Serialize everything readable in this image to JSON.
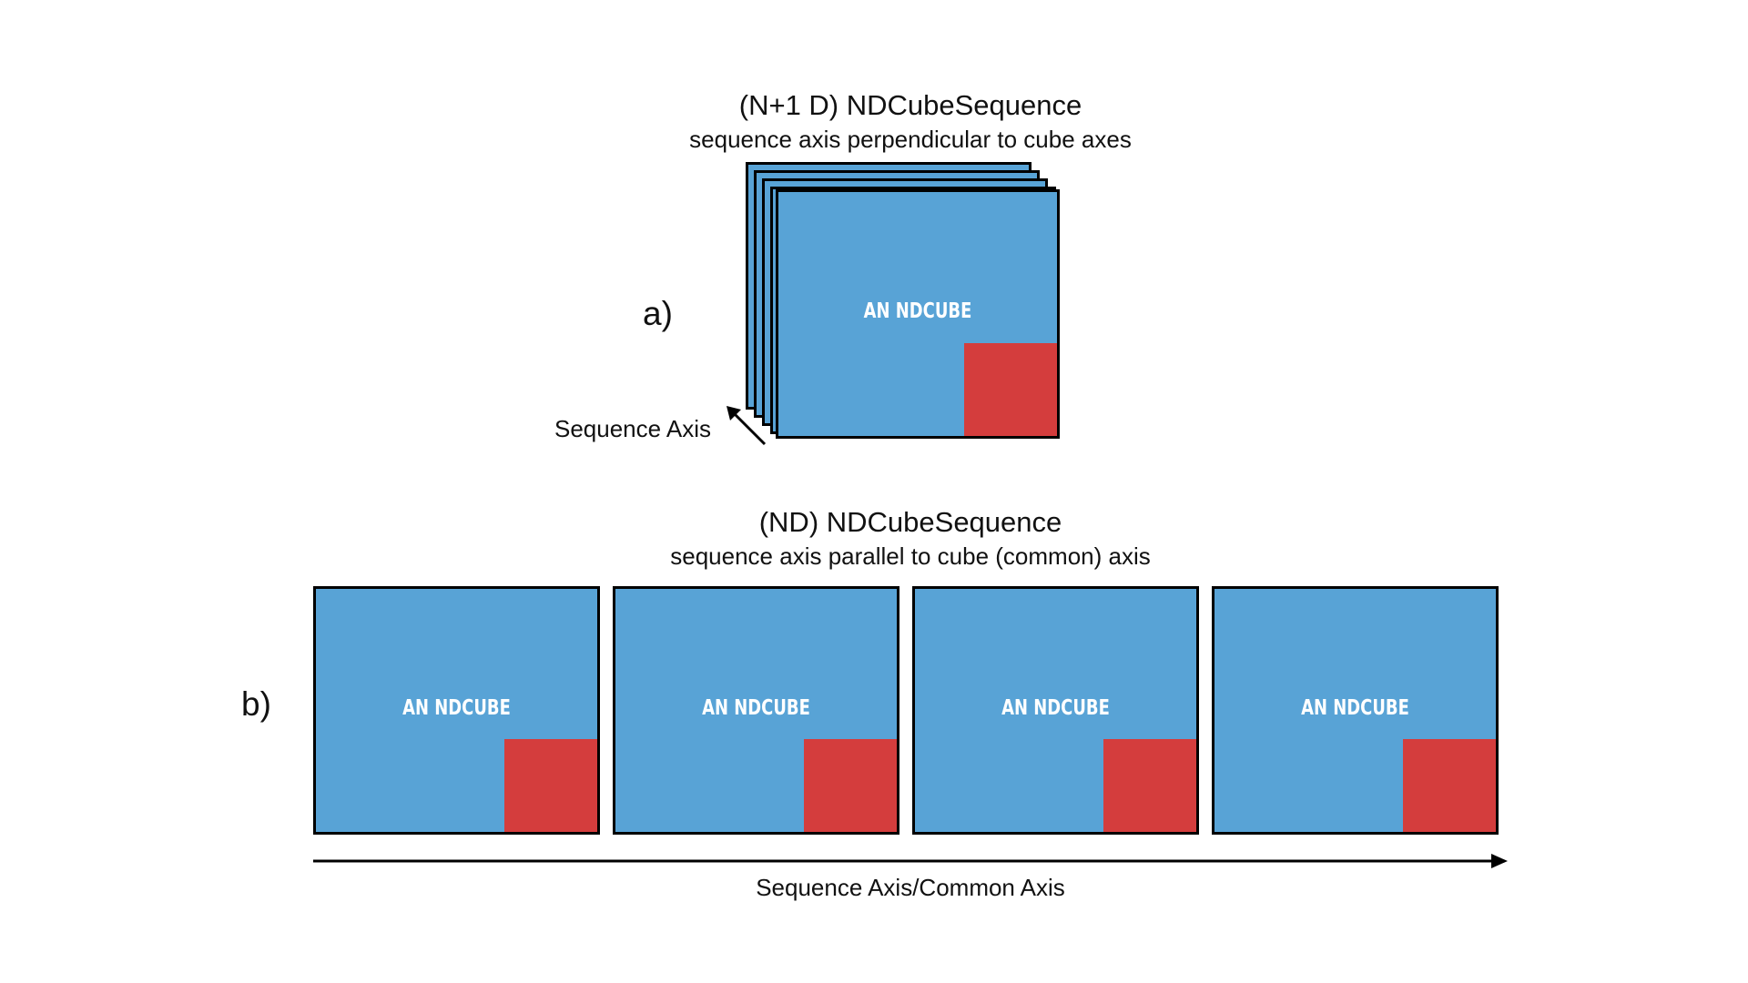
{
  "panel_a": {
    "label": "a)",
    "title": "(N+1 D) NDCubeSequence",
    "subtitle": "sequence axis perpendicular to cube axes",
    "axis_label": "Sequence Axis",
    "cube_label": "AN NDCUBE"
  },
  "panel_b": {
    "label": "b)",
    "title": "(ND) NDCubeSequence",
    "subtitle": "sequence axis parallel to cube (common) axis",
    "axis_label": "Sequence Axis/Common Axis",
    "cubes": [
      {
        "label": "AN NDCUBE"
      },
      {
        "label": "AN NDCUBE"
      },
      {
        "label": "AN NDCUBE"
      },
      {
        "label": "AN NDCUBE"
      }
    ]
  },
  "colors": {
    "cube_fill": "#58a3d6",
    "corner_fill": "#d43d3d",
    "outline": "#000000"
  }
}
